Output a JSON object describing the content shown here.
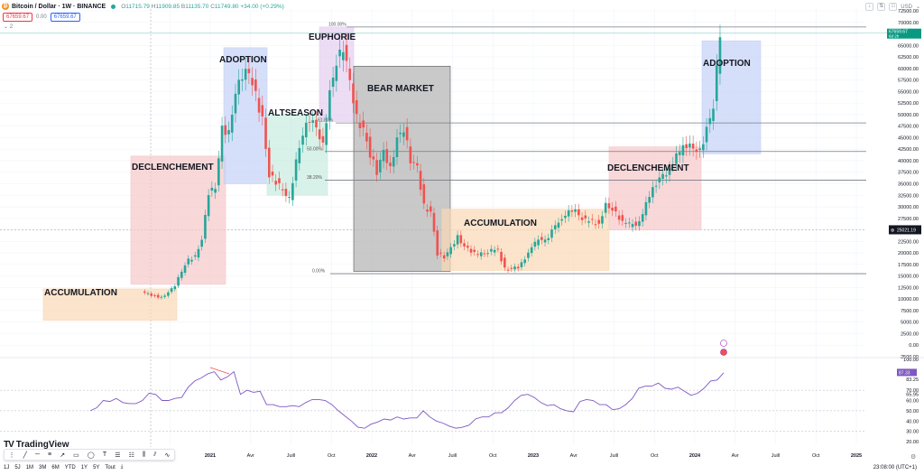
{
  "header": {
    "symbol_title": "Bitcoin / Dollar · 1W · BINANCE",
    "coin_glyph": "₿",
    "ohlc": {
      "o_label": "O",
      "o": "11715.79",
      "h_label": "H",
      "h": "11909.85",
      "l_label": "B",
      "l": "11135.70",
      "c_label": "C",
      "c": "11749.80",
      "change": "+34.00 (+0.29%)"
    },
    "sell_price": "67659.67",
    "spread": "0.00",
    "buy_price": "67659.67",
    "indicator_toggle": "⌄ 2"
  },
  "top_right": {
    "currency": "USD",
    "buttons": [
      "↓",
      "⇅",
      "□"
    ]
  },
  "colors": {
    "up": "#26a69a",
    "down": "#ef5350",
    "rsi": "#7e57c2",
    "accumulation": "#f9d9b5",
    "declenchement": "#f6c7c9",
    "adoption": "#c5d2f6",
    "altseason": "#c8ebe0",
    "euphorie": "#e4cdf0",
    "bear": "#b7b7b7"
  },
  "chart_data": {
    "type": "candlestick",
    "title": "Bitcoin / Dollar · 1W · BINANCE",
    "xlabel": "",
    "ylabel": "USD",
    "ylim": [
      -2500,
      72500
    ],
    "y_ticks": [
      "72500.00",
      "70000.00",
      "65000.00",
      "62500.00",
      "60000.00",
      "57500.00",
      "55000.00",
      "52500.00",
      "50000.00",
      "47500.00",
      "45000.00",
      "42500.00",
      "40000.00",
      "37500.00",
      "35000.00",
      "32500.00",
      "30000.00",
      "27500.00",
      "22500.00",
      "20000.00",
      "17500.00",
      "15000.00",
      "12500.00",
      "10000.00",
      "7500.00",
      "5000.00",
      "2500.00",
      "0.00",
      "-2500.00"
    ],
    "x_ticks": [
      "2021",
      "Avr",
      "Juill",
      "Oct",
      "2022",
      "Avr",
      "Juill",
      "Oct",
      "2023",
      "Avr",
      "Juill",
      "Oct",
      "2024",
      "Avr",
      "Juill",
      "Oct",
      "2025"
    ],
    "last_price": {
      "value": "67659.67",
      "countdown": "6d 2h"
    },
    "crosshair_price": "25021.19",
    "fib_levels": [
      {
        "label": "100.00%",
        "price": 69000
      },
      {
        "label": "61.80%",
        "price": 48200
      },
      {
        "label": "50.00%",
        "price": 42000
      },
      {
        "label": "38.20%",
        "price": 35800
      },
      {
        "label": "0.00%",
        "price": 15500
      }
    ],
    "phases": [
      {
        "label": "ACCUMULATION",
        "start": "2020-08",
        "end": "2020-12",
        "low": 5400,
        "high": 12200,
        "color": "#f9d9b5"
      },
      {
        "label": "DECLENCHEMENT",
        "start": "2020-12",
        "end": "2021-03",
        "low": 13200,
        "high": 41000,
        "color": "#f6c7c9"
      },
      {
        "label": "ADOPTION",
        "start": "2021-03",
        "end": "2021-05",
        "low": 35000,
        "high": 64500,
        "color": "#c5d2f6"
      },
      {
        "label": "ALTSEASON",
        "start": "2021-05",
        "end": "2021-09",
        "low": 32500,
        "high": 50000,
        "color": "#c8ebe0"
      },
      {
        "label": "EUPHORIE",
        "start": "2021-09",
        "end": "2021-11",
        "low": 48500,
        "high": 69000,
        "color": "#e4cdf0"
      },
      {
        "label": "BEAR MARKET",
        "start": "2021-11",
        "end": "2022-06",
        "low": 16000,
        "high": 60500,
        "color": "#b7b7b7"
      },
      {
        "label": "ACCUMULATION",
        "start": "2022-06",
        "end": "2023-06",
        "low": 16200,
        "high": 29500,
        "color": "#f9d9b5"
      },
      {
        "label": "DECLENCHEMENT",
        "start": "2023-06",
        "end": "2023-12",
        "low": 25000,
        "high": 43000,
        "color": "#f6c7c9"
      },
      {
        "label": "ADOPTION",
        "start": "2023-12",
        "end": "2024-03",
        "low": 41500,
        "high": 66000,
        "color": "#c5d2f6"
      }
    ],
    "price_path": [
      [
        "2020-08",
        11500
      ],
      [
        "2020-09",
        10700
      ],
      [
        "2020-09b",
        10300
      ],
      [
        "2020-10",
        11500
      ],
      [
        "2020-10b",
        13000
      ],
      [
        "2020-11",
        16000
      ],
      [
        "2020-11b",
        18500
      ],
      [
        "2020-12",
        19200
      ],
      [
        "2020-12b",
        23000
      ],
      [
        "2021-01",
        33000
      ],
      [
        "2021-01b",
        34000
      ],
      [
        "2021-02",
        47000
      ],
      [
        "2021-02b",
        46000
      ],
      [
        "2021-03",
        55000
      ],
      [
        "2021-03b",
        58700
      ],
      [
        "2021-04",
        59000
      ],
      [
        "2021-04b",
        54000
      ],
      [
        "2021-05",
        49000
      ],
      [
        "2021-05b",
        37000
      ],
      [
        "2021-06",
        35500
      ],
      [
        "2021-06b",
        33500
      ],
      [
        "2021-07",
        31500
      ],
      [
        "2021-07b",
        40000
      ],
      [
        "2021-08",
        46000
      ],
      [
        "2021-08b",
        49000
      ],
      [
        "2021-09",
        47000
      ],
      [
        "2021-09b",
        43000
      ],
      [
        "2021-10",
        55000
      ],
      [
        "2021-10b",
        61500
      ],
      [
        "2021-11",
        64500
      ],
      [
        "2021-11b",
        57000
      ],
      [
        "2021-12",
        49000
      ],
      [
        "2021-12b",
        47000
      ],
      [
        "2022-01",
        41500
      ],
      [
        "2022-01b",
        37500
      ],
      [
        "2022-02",
        42000
      ],
      [
        "2022-02b",
        38000
      ],
      [
        "2022-03",
        45000
      ],
      [
        "2022-03b",
        47000
      ],
      [
        "2022-04",
        40000
      ],
      [
        "2022-04b",
        38500
      ],
      [
        "2022-05",
        30000
      ],
      [
        "2022-05b",
        29000
      ],
      [
        "2022-06",
        20000
      ],
      [
        "2022-06b",
        19000
      ],
      [
        "2022-07",
        21000
      ],
      [
        "2022-07b",
        23500
      ],
      [
        "2022-08",
        21500
      ],
      [
        "2022-09",
        19500
      ],
      [
        "2022-10",
        20500
      ],
      [
        "2022-10b",
        20600
      ],
      [
        "2022-11",
        16500
      ],
      [
        "2022-12",
        16800
      ],
      [
        "2023-01",
        21000
      ],
      [
        "2023-01b",
        23000
      ],
      [
        "2023-02",
        22500
      ],
      [
        "2023-03",
        27000
      ],
      [
        "2023-03b",
        28300
      ],
      [
        "2023-04",
        29500
      ],
      [
        "2023-05",
        27000
      ],
      [
        "2023-06",
        26500
      ],
      [
        "2023-06b",
        30500
      ],
      [
        "2023-07",
        29500
      ],
      [
        "2023-08",
        26000
      ],
      [
        "2023-09",
        26500
      ],
      [
        "2023-10",
        34500
      ],
      [
        "2023-11",
        37500
      ],
      [
        "2023-12",
        42000
      ],
      [
        "2023-12b",
        43500
      ],
      [
        "2024-01",
        42500
      ],
      [
        "2024-01b",
        41800
      ],
      [
        "2024-02",
        47000
      ],
      [
        "2024-02b",
        52000
      ],
      [
        "2024-03",
        67659
      ]
    ],
    "rsi": {
      "name": "RSI",
      "current": "87.33",
      "ma": "83.25",
      "levels": [
        "100.00",
        "70.00",
        "65.95",
        "60.00",
        "50.00",
        "40.00",
        "30.00",
        "20.00"
      ],
      "ylim": [
        20,
        100
      ],
      "values": [
        50,
        53,
        60,
        59,
        62,
        58,
        57,
        57,
        60,
        67,
        66,
        60,
        60,
        62,
        63,
        73,
        79,
        82,
        86,
        88,
        80,
        83,
        88,
        66,
        70,
        68,
        69,
        56,
        56,
        54,
        54,
        55,
        54,
        58,
        61,
        61,
        60,
        56,
        50,
        45,
        40,
        34,
        33,
        37,
        39,
        42,
        41,
        44,
        42,
        43,
        43,
        50,
        44,
        40,
        38,
        35,
        33,
        34,
        36,
        42,
        44,
        44,
        48,
        48,
        53,
        60,
        65,
        66,
        63,
        58,
        55,
        56,
        52,
        50,
        49,
        59,
        61,
        60,
        56,
        56,
        51,
        52,
        56,
        62,
        72,
        74,
        74,
        77,
        72,
        71,
        73,
        69,
        65,
        67,
        72,
        79,
        80,
        87
      ]
    },
    "annotations": [
      "earnings-icon",
      "flag-icon"
    ]
  },
  "bottom": {
    "brand": "TradingView",
    "brand_mark": "TV",
    "draw_tools": [
      "⋮",
      "╱",
      "─",
      "≡",
      "↗",
      "▭",
      "◯",
      "T",
      "☰",
      "☷",
      "⫼",
      "⫽",
      "∿"
    ],
    "ranges": [
      "1J",
      "5J",
      "1M",
      "3M",
      "6M",
      "YTD",
      "1Y",
      "5Y",
      "Tout"
    ],
    "goto_icon": "⤓",
    "clock": "23:08:00 (UTC+1)"
  }
}
